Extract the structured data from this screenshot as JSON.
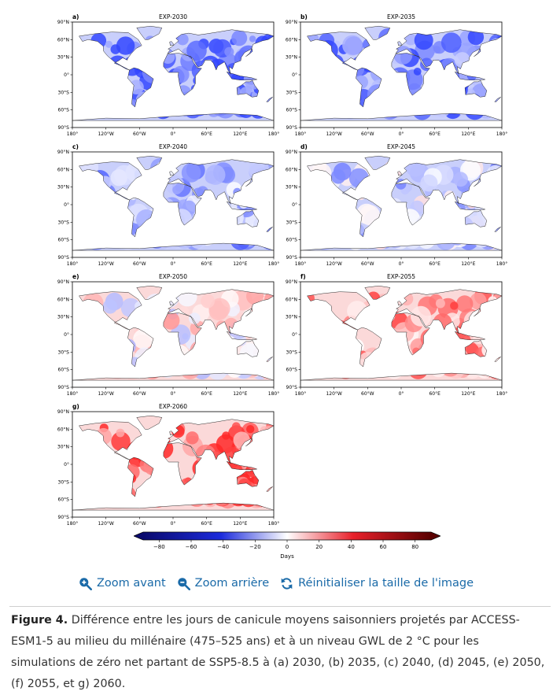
{
  "figure": {
    "xticks": [
      "180°",
      "120°W",
      "60°W",
      "0°",
      "60°E",
      "120°E",
      "180°"
    ],
    "yticks": [
      "90°N",
      "60°N",
      "30°N",
      "0°",
      "30°S",
      "60°S",
      "90°S"
    ],
    "panels": [
      {
        "letter": "a)",
        "title": "EXP-2030",
        "intensity": -0.85
      },
      {
        "letter": "b)",
        "title": "EXP-2035",
        "intensity": -0.7
      },
      {
        "letter": "c)",
        "title": "EXP-2040",
        "intensity": -0.45
      },
      {
        "letter": "d)",
        "title": "EXP-2045",
        "intensity": -0.25
      },
      {
        "letter": "e)",
        "title": "EXP-2050",
        "intensity": 0.05
      },
      {
        "letter": "f)",
        "title": "EXP-2055",
        "intensity": 0.45
      },
      {
        "letter": "g)",
        "title": "EXP-2060",
        "intensity": 0.75
      }
    ]
  },
  "colorbar": {
    "ticks": [
      "−80",
      "−60",
      "−40",
      "−20",
      "0",
      "20",
      "40",
      "60",
      "80"
    ],
    "min": -90,
    "max": 90,
    "label": "Days",
    "colors": {
      "neg_dark": "#0a0a6e",
      "neg": "#1c2bdc",
      "neutral": "#ffffff",
      "pos": "#e8202a",
      "pos_dark": "#5a0000"
    }
  },
  "toolbar": {
    "zoom_in": "Zoom avant",
    "zoom_out": "Zoom arrière",
    "reset": "Réinitialiser la taille de l'image"
  },
  "caption": {
    "label": "Figure 4.",
    "text": " Différence entre les jours de canicule moyens saisonniers projetés par ACCESS-ESM1-5 au milieu du millénaire (475–525 ans) et à un niveau GWL de 2 °C pour les simulations de zéro net partant de SSP5-8.5 à (a) 2030, (b) 2035, (c) 2040, (d) 2045, (e) 2050, (f) 2055, et g) 2060."
  }
}
